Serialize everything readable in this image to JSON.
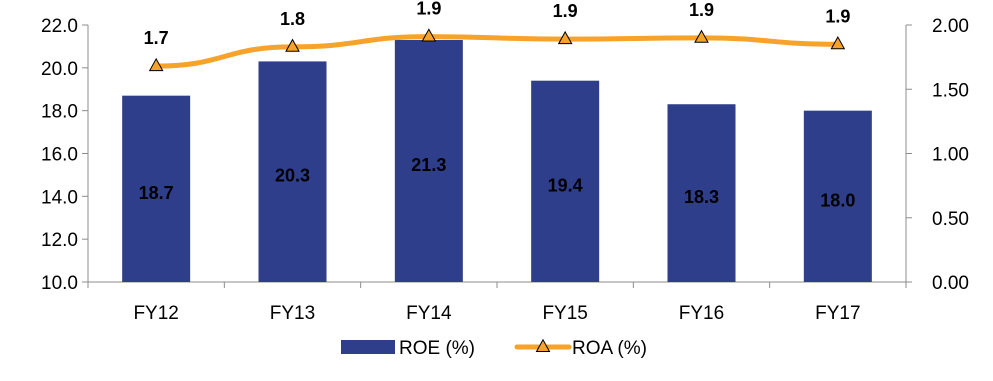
{
  "chart_data": {
    "type": "bar",
    "categories": [
      "FY12",
      "FY13",
      "FY14",
      "FY15",
      "FY16",
      "FY17"
    ],
    "series": [
      {
        "name": "ROE (%)",
        "type": "bar",
        "axis": "left",
        "values": [
          18.7,
          20.3,
          21.3,
          19.4,
          18.3,
          18.0
        ],
        "labels": [
          "18.7",
          "20.3",
          "21.3",
          "19.4",
          "18.3",
          "18.0"
        ],
        "color": "#2E3E8A"
      },
      {
        "name": "ROA (%)",
        "type": "line",
        "axis": "right",
        "values": [
          1.68,
          1.83,
          1.91,
          1.89,
          1.9,
          1.85
        ],
        "labels": [
          "1.7",
          "1.8",
          "1.9",
          "1.9",
          "1.9",
          "1.9"
        ],
        "color": "#F7A229",
        "marker": "triangle",
        "marker_color": "#F7A229"
      }
    ],
    "y_left": {
      "min": 10,
      "max": 22,
      "step": 2,
      "decimals": 1
    },
    "y_right": {
      "min": 0,
      "max": 2,
      "step": 0.5,
      "decimals": 2
    },
    "title": "",
    "xlabel": "",
    "ylabel": "",
    "grid": false,
    "legend_position": "bottom-center",
    "axis_color": "#8C8C8C"
  }
}
